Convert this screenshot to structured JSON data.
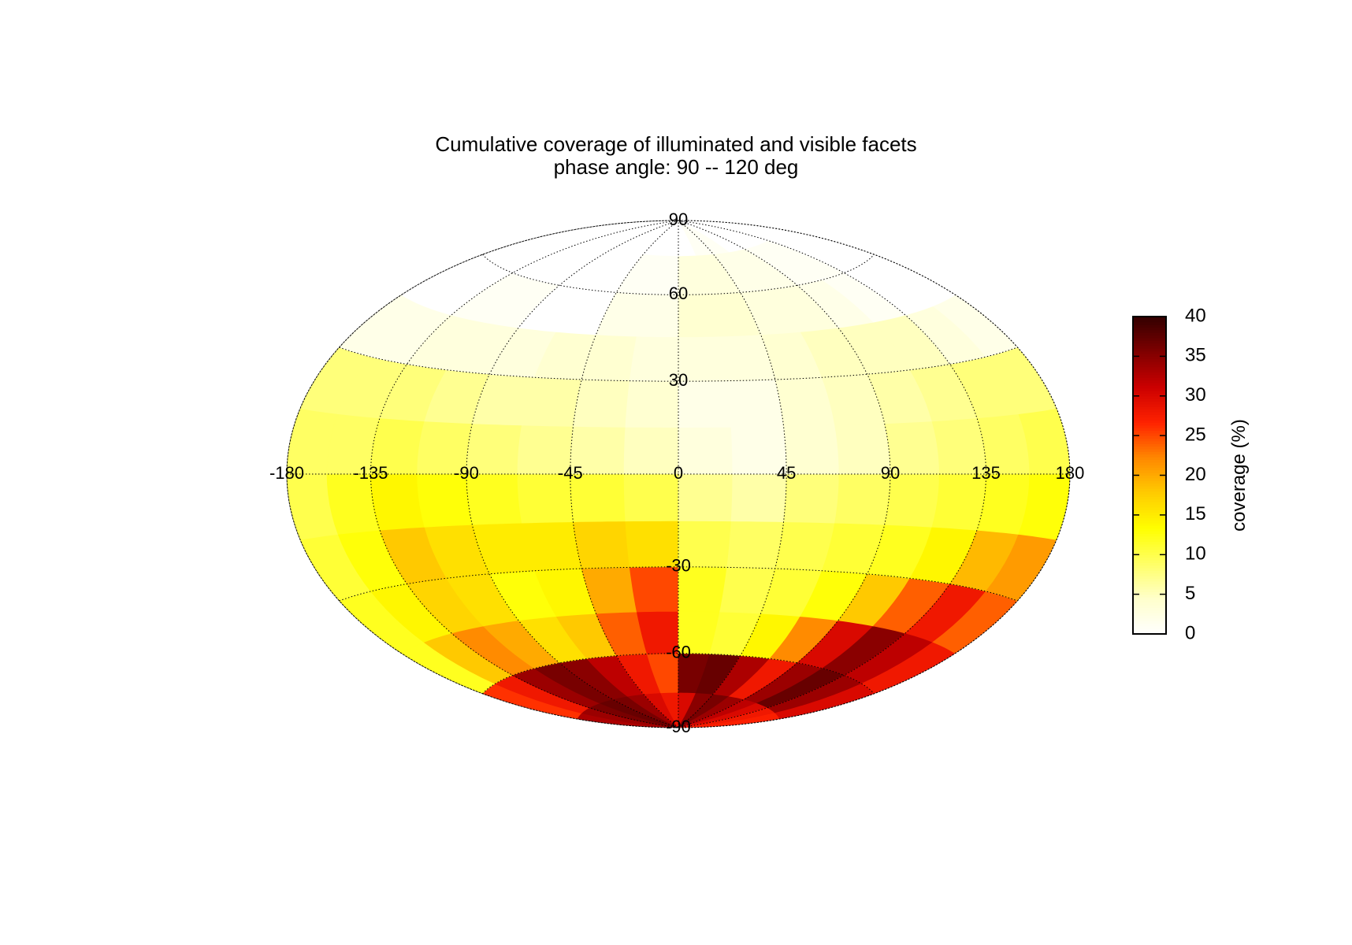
{
  "title_line1": "Cumulative coverage of illuminated and visible facets",
  "title_line2": "phase angle:  90 -- 120 deg",
  "chart_data": {
    "type": "heatmap",
    "projection": "hammer-aitoff",
    "grid": true,
    "x_ticks": [
      "-180",
      "-135",
      "-90",
      "-45",
      "0",
      "45",
      "90",
      "135",
      "180"
    ],
    "x_tick_values": [
      -180,
      -135,
      -90,
      -45,
      0,
      45,
      90,
      135,
      180
    ],
    "y_ticks": [
      "90",
      "60",
      "30",
      "-30",
      "-60",
      "-90"
    ],
    "y_tick_values": [
      90,
      60,
      30,
      -30,
      -60,
      -90
    ],
    "xlim": [
      -180,
      180
    ],
    "ylim": [
      -90,
      90
    ],
    "colorbar": {
      "label": "coverage (%)",
      "range": [
        0,
        40
      ],
      "ticks": [
        "0",
        "5",
        "10",
        "15",
        "20",
        "25",
        "30",
        "35",
        "40"
      ],
      "tick_values": [
        0,
        5,
        10,
        15,
        20,
        25,
        30,
        35,
        40
      ],
      "colormap": [
        "#ffffff",
        "#ffffcc",
        "#ffff66",
        "#ffff00",
        "#ffcc00",
        "#ff8800",
        "#ff2200",
        "#cc0000",
        "#800000",
        "#330000"
      ]
    },
    "lat_bands": [
      -90,
      -75,
      -60,
      -45,
      -30,
      -15,
      0,
      15,
      30,
      45,
      60,
      75,
      90
    ],
    "lon_bands": [
      -180,
      -157.5,
      -135,
      -112.5,
      -90,
      -67.5,
      -45,
      -22.5,
      0,
      22.5,
      45,
      67.5,
      90,
      112.5,
      135,
      157.5,
      180
    ],
    "values": [
      [
        33,
        34,
        36,
        37,
        36,
        34,
        30,
        28,
        30,
        35,
        36,
        34,
        32,
        30,
        28,
        27
      ],
      [
        26,
        28,
        34,
        36,
        35,
        32,
        28,
        25,
        36,
        37,
        33,
        28,
        34,
        37,
        34,
        30
      ],
      [
        12,
        18,
        22,
        20,
        16,
        18,
        24,
        28,
        12,
        11,
        14,
        22,
        30,
        35,
        32,
        28
      ],
      [
        12,
        14,
        17,
        16,
        13,
        14,
        20,
        25,
        12,
        10,
        11,
        13,
        18,
        24,
        28,
        24
      ],
      [
        11,
        13,
        18,
        16,
        15,
        15,
        17,
        16,
        10,
        9,
        10,
        11,
        12,
        14,
        19,
        21
      ],
      [
        10,
        12,
        14,
        13,
        12,
        11,
        11,
        10,
        7,
        6,
        8,
        9,
        10,
        11,
        12,
        13
      ],
      [
        9,
        9,
        10,
        9,
        8,
        7,
        6,
        5,
        3,
        2,
        4,
        5,
        7,
        8,
        9,
        10
      ],
      [
        8,
        8,
        8,
        7,
        6,
        6,
        5,
        4,
        2,
        2,
        4,
        5,
        6,
        7,
        8,
        8
      ],
      [
        2,
        2,
        3,
        3,
        3,
        4,
        4,
        3,
        3,
        3,
        4,
        5,
        5,
        5,
        3,
        2
      ],
      [
        0,
        0,
        1,
        1,
        0,
        0,
        2,
        2,
        4,
        4,
        3,
        3,
        2,
        1,
        0,
        0
      ],
      [
        0,
        0,
        0,
        0,
        0,
        0,
        1,
        1,
        3,
        3,
        2,
        2,
        1,
        1,
        0,
        0
      ],
      [
        0,
        0,
        0,
        0,
        0,
        0,
        0,
        0,
        0,
        1,
        1,
        0,
        0,
        0,
        0,
        0
      ]
    ]
  }
}
